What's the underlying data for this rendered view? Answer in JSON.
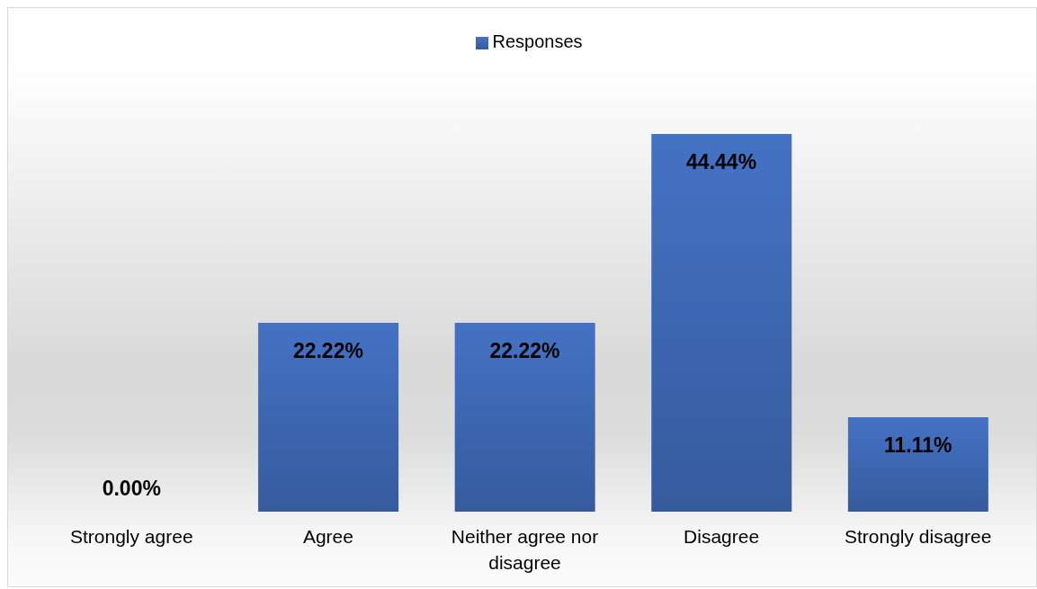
{
  "chart_data": {
    "type": "bar",
    "categories": [
      "Strongly agree",
      "Agree",
      "Neither agree nor disagree",
      "Disagree",
      "Strongly disagree"
    ],
    "series": [
      {
        "name": "Responses",
        "color": "#4472c4",
        "values": [
          0.0,
          22.22,
          22.22,
          44.44,
          11.11
        ],
        "value_labels": [
          "0.00%",
          "22.22%",
          "22.22%",
          "44.44%",
          "11.11%"
        ]
      }
    ],
    "legend": "top"
  }
}
